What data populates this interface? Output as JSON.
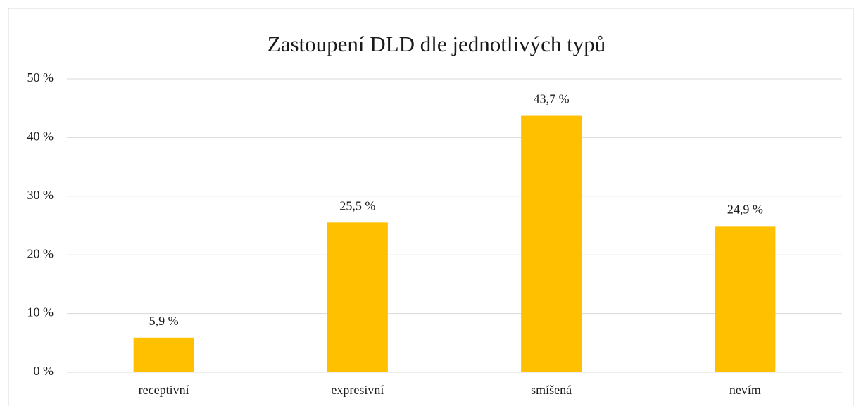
{
  "chart_data": {
    "type": "bar",
    "title": "Zastoupení DLD dle jednotlivých typů",
    "categories": [
      "receptivní",
      "expresivní",
      "smíšená",
      "nevím"
    ],
    "values": [
      5.9,
      25.5,
      43.7,
      24.9
    ],
    "value_labels": [
      "5,9 %",
      "25,5 %",
      "43,7 %",
      "24,9 %"
    ],
    "color": "#ffc000",
    "ylim": [
      0,
      50
    ],
    "yticks": [
      {
        "value": 0,
        "label": "0 %"
      },
      {
        "value": 10,
        "label": "10 %"
      },
      {
        "value": 20,
        "label": "20 %"
      },
      {
        "value": 30,
        "label": "30 %"
      },
      {
        "value": 40,
        "label": "40 %"
      },
      {
        "value": 50,
        "label": "50 %"
      }
    ],
    "grid": true
  }
}
